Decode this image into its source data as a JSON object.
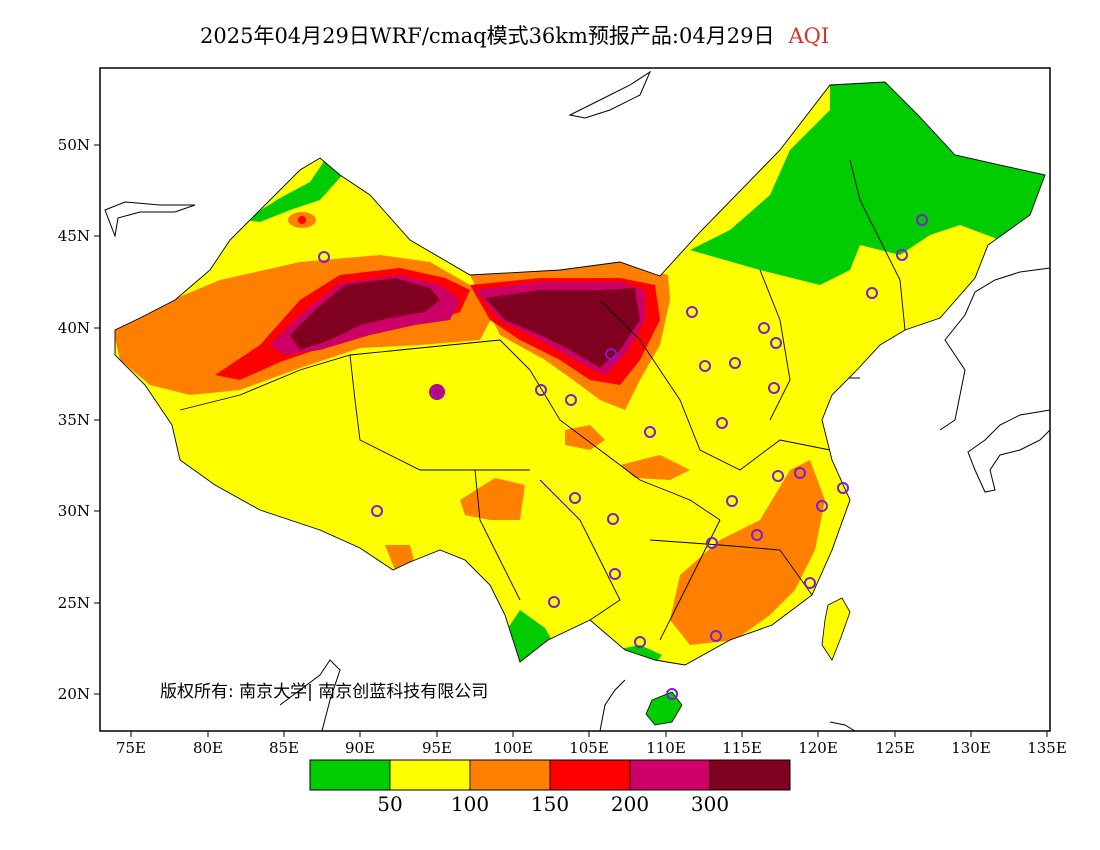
{
  "title": {
    "main": "2025年04月29日WRF/cmaq模式36km预报产品:04月29日",
    "variable": "AQI"
  },
  "axes": {
    "x_ticks": [
      "75E",
      "80E",
      "85E",
      "90E",
      "95E",
      "100E",
      "105E",
      "110E",
      "115E",
      "120E",
      "125E",
      "130E",
      "135E"
    ],
    "y_ticks": [
      "50N",
      "45N",
      "40N",
      "35N",
      "30N",
      "25N",
      "20N"
    ]
  },
  "copyright": "版权所有: 南京大学| 南京创蓝科技有限公司",
  "legend": {
    "colors": [
      "#00cc00",
      "#ffff00",
      "#ff8000",
      "#ff0000",
      "#cc0066",
      "#800020"
    ],
    "labels": [
      "50",
      "100",
      "150",
      "200",
      "300"
    ]
  },
  "stations": 30
}
